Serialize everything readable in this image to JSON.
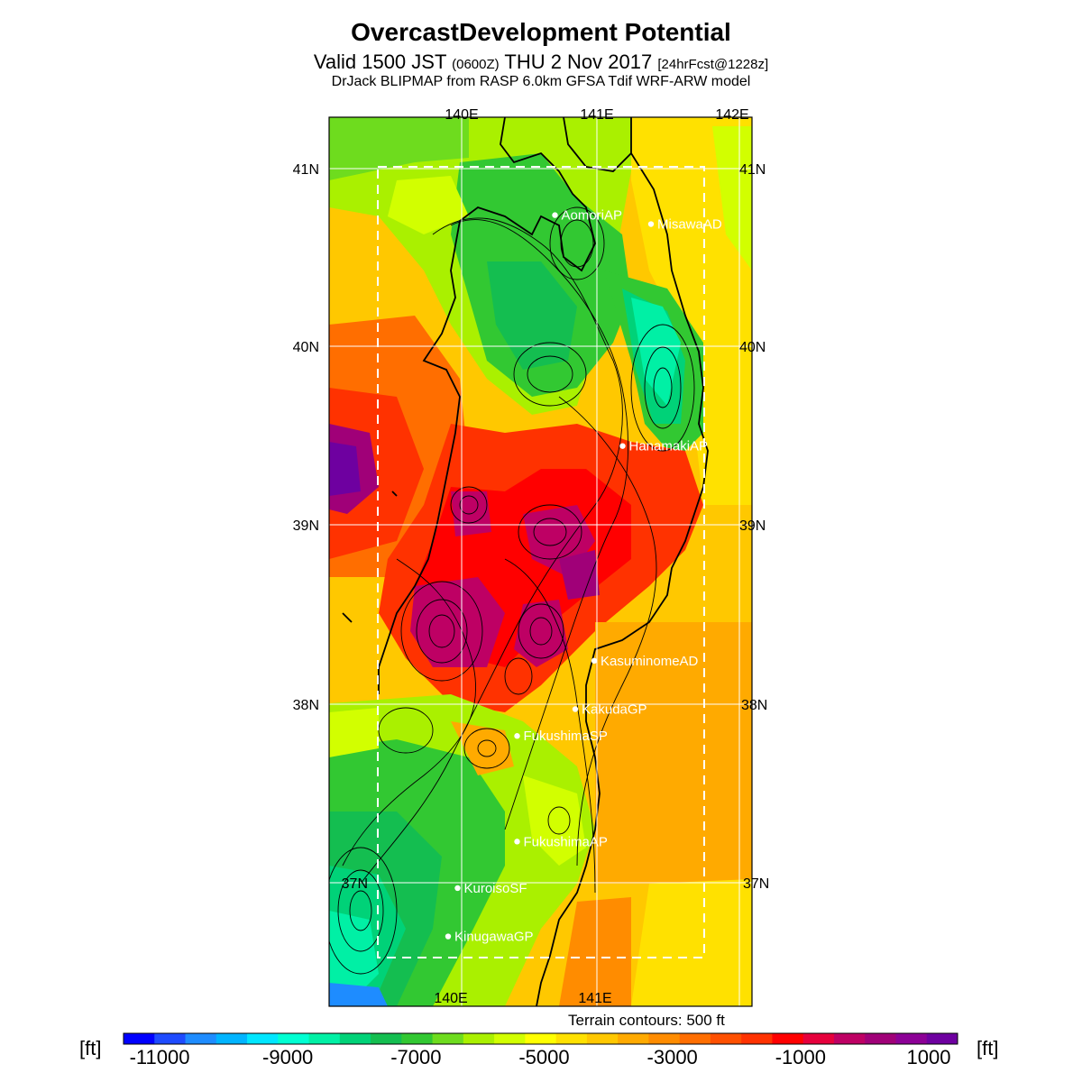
{
  "title": "OvercastDevelopment Potential",
  "subtitle": {
    "part1": "Valid 1500 JST",
    "part2": "(0600Z)",
    "part3": "THU 2 Nov 2017",
    "part4": "[24hrFcst@1228z]"
  },
  "model_line": "DrJack BLIPMAP from RASP 6.0km GFSA Tdif WRF-ARW model",
  "lon_labels": [
    "140E",
    "141E",
    "142E"
  ],
  "lat_labels": [
    "41N",
    "40N",
    "39N",
    "38N",
    "37N"
  ],
  "stations": [
    {
      "name": "AomoriAP",
      "lon": 140.69,
      "lat": 40.73
    },
    {
      "name": "MisawaAD",
      "lon": 141.4,
      "lat": 40.68
    },
    {
      "name": "HanamakiAP",
      "lon": 141.19,
      "lat": 39.44
    },
    {
      "name": "KasuminomeAD",
      "lon": 140.98,
      "lat": 38.24
    },
    {
      "name": "KakudaGP",
      "lon": 140.84,
      "lat": 37.97
    },
    {
      "name": "FukushimaSP",
      "lon": 140.41,
      "lat": 37.82
    },
    {
      "name": "FukushimaAP",
      "lon": 140.41,
      "lat": 37.23
    },
    {
      "name": "KuroisoSF",
      "lon": 139.97,
      "lat": 36.97
    },
    {
      "name": "KinugawaGP",
      "lon": 139.9,
      "lat": 36.7
    }
  ],
  "terrain_note": "Terrain contours: 500 ft",
  "colorbar": {
    "unit": "[ft]",
    "tick_labels": [
      "-11000",
      "-9000",
      "-7000",
      "-5000",
      "-3000",
      "-1000",
      "1000"
    ],
    "colors": [
      "#0000ff",
      "#1e4bff",
      "#1e8cff",
      "#00b4ff",
      "#00e6ff",
      "#00ffd2",
      "#00f0a5",
      "#00d278",
      "#14be50",
      "#32c832",
      "#6edc1e",
      "#aaf000",
      "#d2ff00",
      "#ffff00",
      "#ffe100",
      "#ffc800",
      "#ffaa00",
      "#ff8c00",
      "#ff6e00",
      "#ff5000",
      "#ff3200",
      "#ff0000",
      "#e6003c",
      "#be0064",
      "#a00078",
      "#8c0096",
      "#6e00a0"
    ]
  },
  "colors": {
    "background": "#ffffff",
    "grid": "#ffffff",
    "coast": "#000000",
    "station_label": "#ffffff"
  }
}
